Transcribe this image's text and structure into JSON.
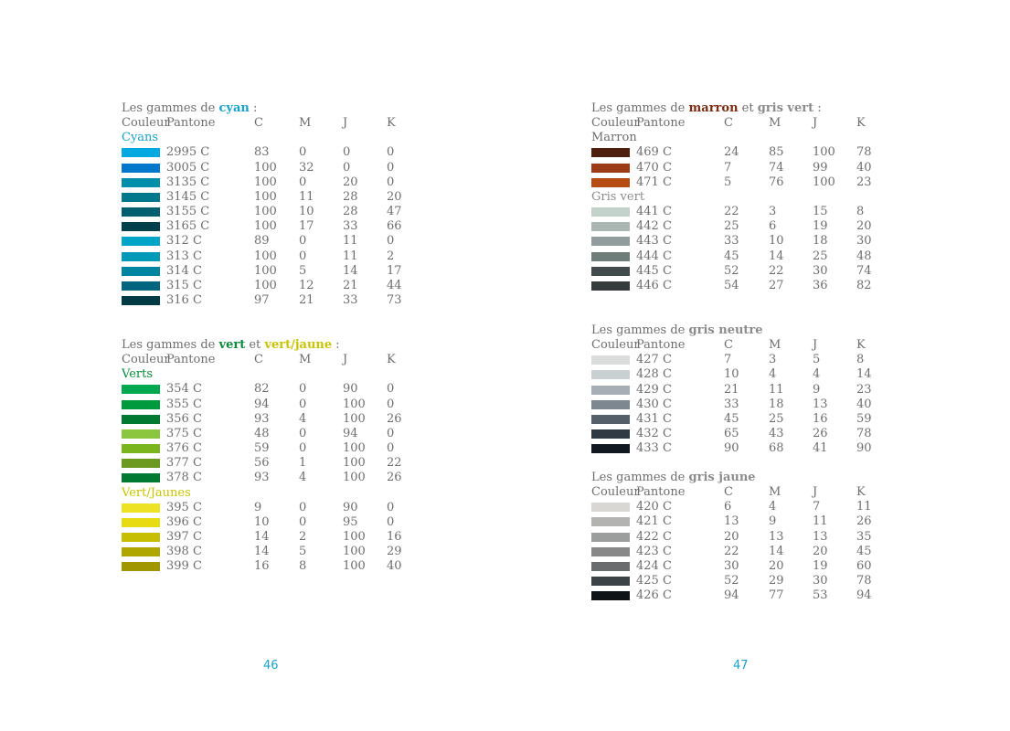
{
  "col_headers": [
    "Couleur",
    "Pantone",
    "C",
    "M",
    "J",
    "K"
  ],
  "page_numbers": [
    "46",
    "47"
  ],
  "colors": {
    "cyan": "#1aa2c8",
    "vert": "#0a8a3c",
    "vert_jaune": "#c8c400",
    "marron": "#7a2d12",
    "gris": "#8c8c8c"
  },
  "blocks": [
    {
      "title": {
        "prefix": "Les gammes de ",
        "parts": [
          {
            "text": "cyan",
            "color": "#1aa2c8"
          }
        ],
        "suffix": " :"
      },
      "groups": [
        {
          "name": "Cyans",
          "color": "#1aa2c8",
          "rows": [
            {
              "pantone": "2995 C",
              "c": "83",
              "m": "0",
              "j": "0",
              "k": "0",
              "hex": "#00A9E0"
            },
            {
              "pantone": "3005 C",
              "c": "100",
              "m": "32",
              "j": "0",
              "k": "0",
              "hex": "#0077C8"
            },
            {
              "pantone": "3135 C",
              "c": "100",
              "m": "0",
              "j": "20",
              "k": "0",
              "hex": "#008EAA"
            },
            {
              "pantone": "3145 C",
              "c": "100",
              "m": "11",
              "j": "28",
              "k": "20",
              "hex": "#00778B"
            },
            {
              "pantone": "3155 C",
              "c": "100",
              "m": "10",
              "j": "28",
              "k": "47",
              "hex": "#005F6E"
            },
            {
              "pantone": "3165 C",
              "c": "100",
              "m": "17",
              "j": "33",
              "k": "66",
              "hex": "#00404D"
            },
            {
              "pantone": "312 C",
              "c": "89",
              "m": "0",
              "j": "11",
              "k": "0",
              "hex": "#00A4C7"
            },
            {
              "pantone": "313 C",
              "c": "100",
              "m": "0",
              "j": "11",
              "k": "2",
              "hex": "#0099B8"
            },
            {
              "pantone": "314 C",
              "c": "100",
              "m": "5",
              "j": "14",
              "k": "17",
              "hex": "#0085A0"
            },
            {
              "pantone": "315 C",
              "c": "100",
              "m": "12",
              "j": "21",
              "k": "44",
              "hex": "#006680"
            },
            {
              "pantone": "316 C",
              "c": "97",
              "m": "21",
              "j": "33",
              "k": "73",
              "hex": "#003A44"
            }
          ]
        }
      ]
    },
    {
      "title": {
        "prefix": "Les gammes de ",
        "parts": [
          {
            "text": "vert",
            "color": "#0a8a3c"
          },
          {
            "text": " et ",
            "color": ""
          },
          {
            "text": "vert/jaune",
            "color": "#c8c400"
          }
        ],
        "suffix": " :"
      },
      "groups": [
        {
          "name": "Verts",
          "color": "#0a8a3c",
          "rows": [
            {
              "pantone": "354 C",
              "c": "82",
              "m": "0",
              "j": "90",
              "k": "0",
              "hex": "#00A94F"
            },
            {
              "pantone": "355 C",
              "c": "94",
              "m": "0",
              "j": "100",
              "k": "0",
              "hex": "#009A3E"
            },
            {
              "pantone": "356 C",
              "c": "93",
              "m": "4",
              "j": "100",
              "k": "26",
              "hex": "#007A33"
            },
            {
              "pantone": "375 C",
              "c": "48",
              "m": "0",
              "j": "94",
              "k": "0",
              "hex": "#8CC63F"
            },
            {
              "pantone": "376 C",
              "c": "59",
              "m": "0",
              "j": "100",
              "k": "0",
              "hex": "#7AB51D"
            },
            {
              "pantone": "377 C",
              "c": "56",
              "m": "1",
              "j": "100",
              "k": "22",
              "hex": "#6A9A1F"
            },
            {
              "pantone": "378 C",
              "c": "93",
              "m": "4",
              "j": "100",
              "k": "26",
              "hex": "#007A33"
            }
          ]
        },
        {
          "name": "Vert/Jaunes",
          "color": "#c8c400",
          "rows": [
            {
              "pantone": "395 C",
              "c": "9",
              "m": "0",
              "j": "90",
              "k": "0",
              "hex": "#EEE224"
            },
            {
              "pantone": "396 C",
              "c": "10",
              "m": "0",
              "j": "95",
              "k": "0",
              "hex": "#E6DC10"
            },
            {
              "pantone": "397 C",
              "c": "14",
              "m": "2",
              "j": "100",
              "k": "16",
              "hex": "#C6BE00"
            },
            {
              "pantone": "398 C",
              "c": "14",
              "m": "5",
              "j": "100",
              "k": "29",
              "hex": "#B0A600"
            },
            {
              "pantone": "399 C",
              "c": "16",
              "m": "8",
              "j": "100",
              "k": "40",
              "hex": "#9F9600"
            }
          ]
        }
      ]
    },
    {
      "title": {
        "prefix": "Les gammes de ",
        "parts": [
          {
            "text": "marron",
            "color": "#7a2d12"
          },
          {
            "text": " et ",
            "color": ""
          },
          {
            "text": "gris vert",
            "color": "#8c8c8c"
          }
        ],
        "suffix": " :"
      },
      "groups": [
        {
          "name": "Marron",
          "color": "#6e6e6e",
          "rows": [
            {
              "pantone": "469 C",
              "c": "24",
              "m": "85",
              "j": "100",
              "k": "78",
              "hex": "#4E1E0E"
            },
            {
              "pantone": "470 C",
              "c": "7",
              "m": "74",
              "j": "99",
              "k": "40",
              "hex": "#9A3D16"
            },
            {
              "pantone": "471 C",
              "c": "5",
              "m": "76",
              "j": "100",
              "k": "23",
              "hex": "#B44C14"
            }
          ]
        },
        {
          "name": "Gris vert",
          "color": "#8c8c8c",
          "rows": [
            {
              "pantone": "441 C",
              "c": "22",
              "m": "3",
              "j": "15",
              "k": "8",
              "hex": "#C3D1CB"
            },
            {
              "pantone": "442 C",
              "c": "25",
              "m": "6",
              "j": "19",
              "k": "20",
              "hex": "#A9B6B1"
            },
            {
              "pantone": "443 C",
              "c": "33",
              "m": "10",
              "j": "18",
              "k": "30",
              "hex": "#919D9D"
            },
            {
              "pantone": "444 C",
              "c": "45",
              "m": "14",
              "j": "25",
              "k": "48",
              "hex": "#6E7C7A"
            },
            {
              "pantone": "445 C",
              "c": "52",
              "m": "22",
              "j": "30",
              "k": "74",
              "hex": "#414B4B"
            },
            {
              "pantone": "446 C",
              "c": "54",
              "m": "27",
              "j": "36",
              "k": "82",
              "hex": "#353C3B"
            }
          ]
        }
      ]
    },
    {
      "title": {
        "prefix": "Les gammes de ",
        "parts": [
          {
            "text": "gris neutre",
            "color": "#8c8c8c"
          }
        ],
        "suffix": ""
      },
      "groups": [
        {
          "name": "",
          "color": "",
          "rows": [
            {
              "pantone": "427 C",
              "c": "7",
              "m": "3",
              "j": "5",
              "k": "8",
              "hex": "#DBDDDD"
            },
            {
              "pantone": "428 C",
              "c": "10",
              "m": "4",
              "j": "4",
              "k": "14",
              "hex": "#C9D0D3"
            },
            {
              "pantone": "429 C",
              "c": "21",
              "m": "11",
              "j": "9",
              "k": "23",
              "hex": "#A6AFB5"
            },
            {
              "pantone": "430 C",
              "c": "33",
              "m": "18",
              "j": "13",
              "k": "40",
              "hex": "#7C8790"
            },
            {
              "pantone": "431 C",
              "c": "45",
              "m": "25",
              "j": "16",
              "k": "59",
              "hex": "#555F69"
            },
            {
              "pantone": "432 C",
              "c": "65",
              "m": "43",
              "j": "26",
              "k": "78",
              "hex": "#303A45"
            },
            {
              "pantone": "433 C",
              "c": "90",
              "m": "68",
              "j": "41",
              "k": "90",
              "hex": "#111820"
            }
          ]
        }
      ]
    },
    {
      "title": {
        "prefix": "Les gammes de ",
        "parts": [
          {
            "text": "gris jaune",
            "color": "#8c8c8c"
          }
        ],
        "suffix": ""
      },
      "groups": [
        {
          "name": "",
          "color": "",
          "rows": [
            {
              "pantone": "420 C",
              "c": "6",
              "m": "4",
              "j": "7",
              "k": "11",
              "hex": "#D8D7D4"
            },
            {
              "pantone": "421 C",
              "c": "13",
              "m": "9",
              "j": "11",
              "k": "26",
              "hex": "#B3B3B1"
            },
            {
              "pantone": "422 C",
              "c": "20",
              "m": "13",
              "j": "13",
              "k": "35",
              "hex": "#9C9D9D"
            },
            {
              "pantone": "423 C",
              "c": "22",
              "m": "14",
              "j": "20",
              "k": "45",
              "hex": "#878887"
            },
            {
              "pantone": "424 C",
              "c": "30",
              "m": "20",
              "j": "19",
              "k": "60",
              "hex": "#6A6C6D"
            },
            {
              "pantone": "425 C",
              "c": "52",
              "m": "29",
              "j": "30",
              "k": "78",
              "hex": "#3C4346"
            },
            {
              "pantone": "426 C",
              "c": "94",
              "m": "77",
              "j": "53",
              "k": "94",
              "hex": "#0E1318"
            }
          ]
        }
      ]
    }
  ]
}
